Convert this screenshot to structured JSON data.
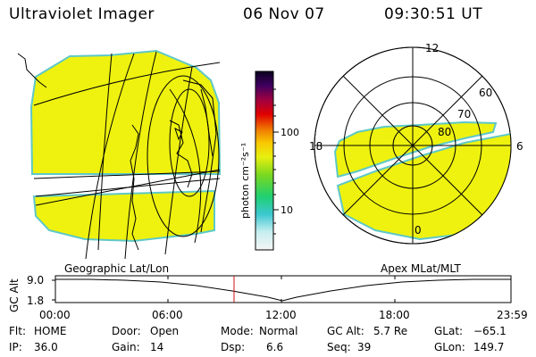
{
  "header": {
    "instrument": "Ultraviolet Imager",
    "date": "06 Nov 07",
    "time": "09:30:51 UT"
  },
  "colorbar": {
    "unit": "photon cm⁻²s⁻¹",
    "ticks": [
      "100",
      "10"
    ]
  },
  "geo_panel": {
    "label": "Geographic Lat/Lon"
  },
  "polar_panel": {
    "label": "Apex MLat/MLT",
    "lat_labels": [
      "60",
      "70",
      "80"
    ],
    "mlt_labels": {
      "top": "12",
      "left": "18",
      "right": "6",
      "bottom": "0"
    }
  },
  "alt_chart": {
    "ylabel": "GC Alt",
    "y_ticks": [
      "9.0",
      "1.8"
    ],
    "x_ticks": [
      "00:00",
      "06:00",
      "12:00",
      "18:00",
      "23:59"
    ]
  },
  "status": {
    "flt_label": "Flt:",
    "flt_value": "HOME",
    "ip_label": "IP:",
    "ip_value": "36.0",
    "door_label": "Door:",
    "door_value": "Open",
    "gain_label": "Gain:",
    "gain_value": "14",
    "mode_label": "Mode:",
    "mode_value": "Normal",
    "dsp_label": "Dsp:",
    "dsp_value": "6.6",
    "gcalt_label": "GC Alt:",
    "gcalt_value": "5.7 Re",
    "seq_label": "Seq:",
    "seq_value": "39",
    "glat_label": "GLat:",
    "glat_value": "−65.1",
    "glon_label": "GLon:",
    "glon_value": "149.7"
  },
  "colors": {
    "fill": "#eef20e",
    "edge": "#5ec8c8",
    "marker": "#d01010"
  }
}
